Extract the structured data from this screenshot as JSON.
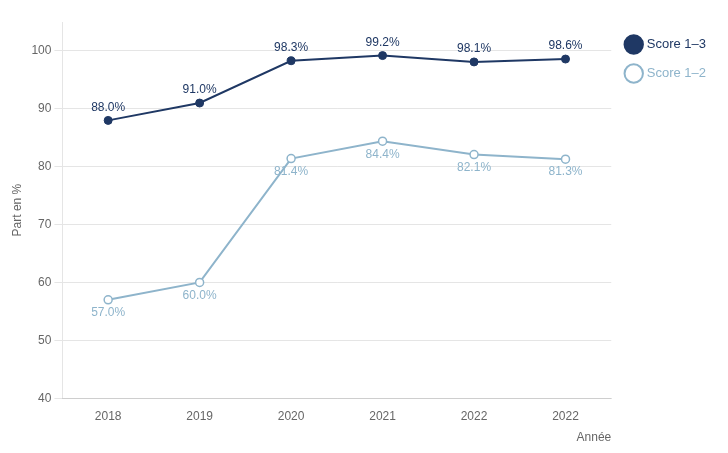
{
  "chart_data": {
    "type": "line",
    "y_label": "Part en %",
    "x_label": "Année",
    "categories": [
      "2018",
      "2019",
      "2020",
      "2021",
      "2022",
      "2022"
    ],
    "series": [
      {
        "name": "Score 1–3",
        "color": "#1f3864",
        "marker": "circle",
        "values": [
          88.0,
          91.0,
          98.3,
          99.2,
          98.1,
          98.6
        ],
        "value_labels": [
          "88.0%",
          "91.0%",
          "98.3%",
          "99.2%",
          "98.1%",
          "98.6%"
        ]
      },
      {
        "name": "Score 1–2",
        "color": "#8eb4cb",
        "marker": "circle",
        "values": [
          57.0,
          60.0,
          81.4,
          84.4,
          82.1,
          81.3
        ],
        "value_labels": [
          "57.0%",
          "60.0%",
          "81.4%",
          "84.4%",
          "82.1%",
          "81.3%"
        ]
      }
    ],
    "ylim": [
      40,
      105
    ],
    "yticks": [
      40,
      50,
      60,
      70,
      80,
      90,
      100
    ],
    "grid": true,
    "legend": "right",
    "data_labels": true
  }
}
